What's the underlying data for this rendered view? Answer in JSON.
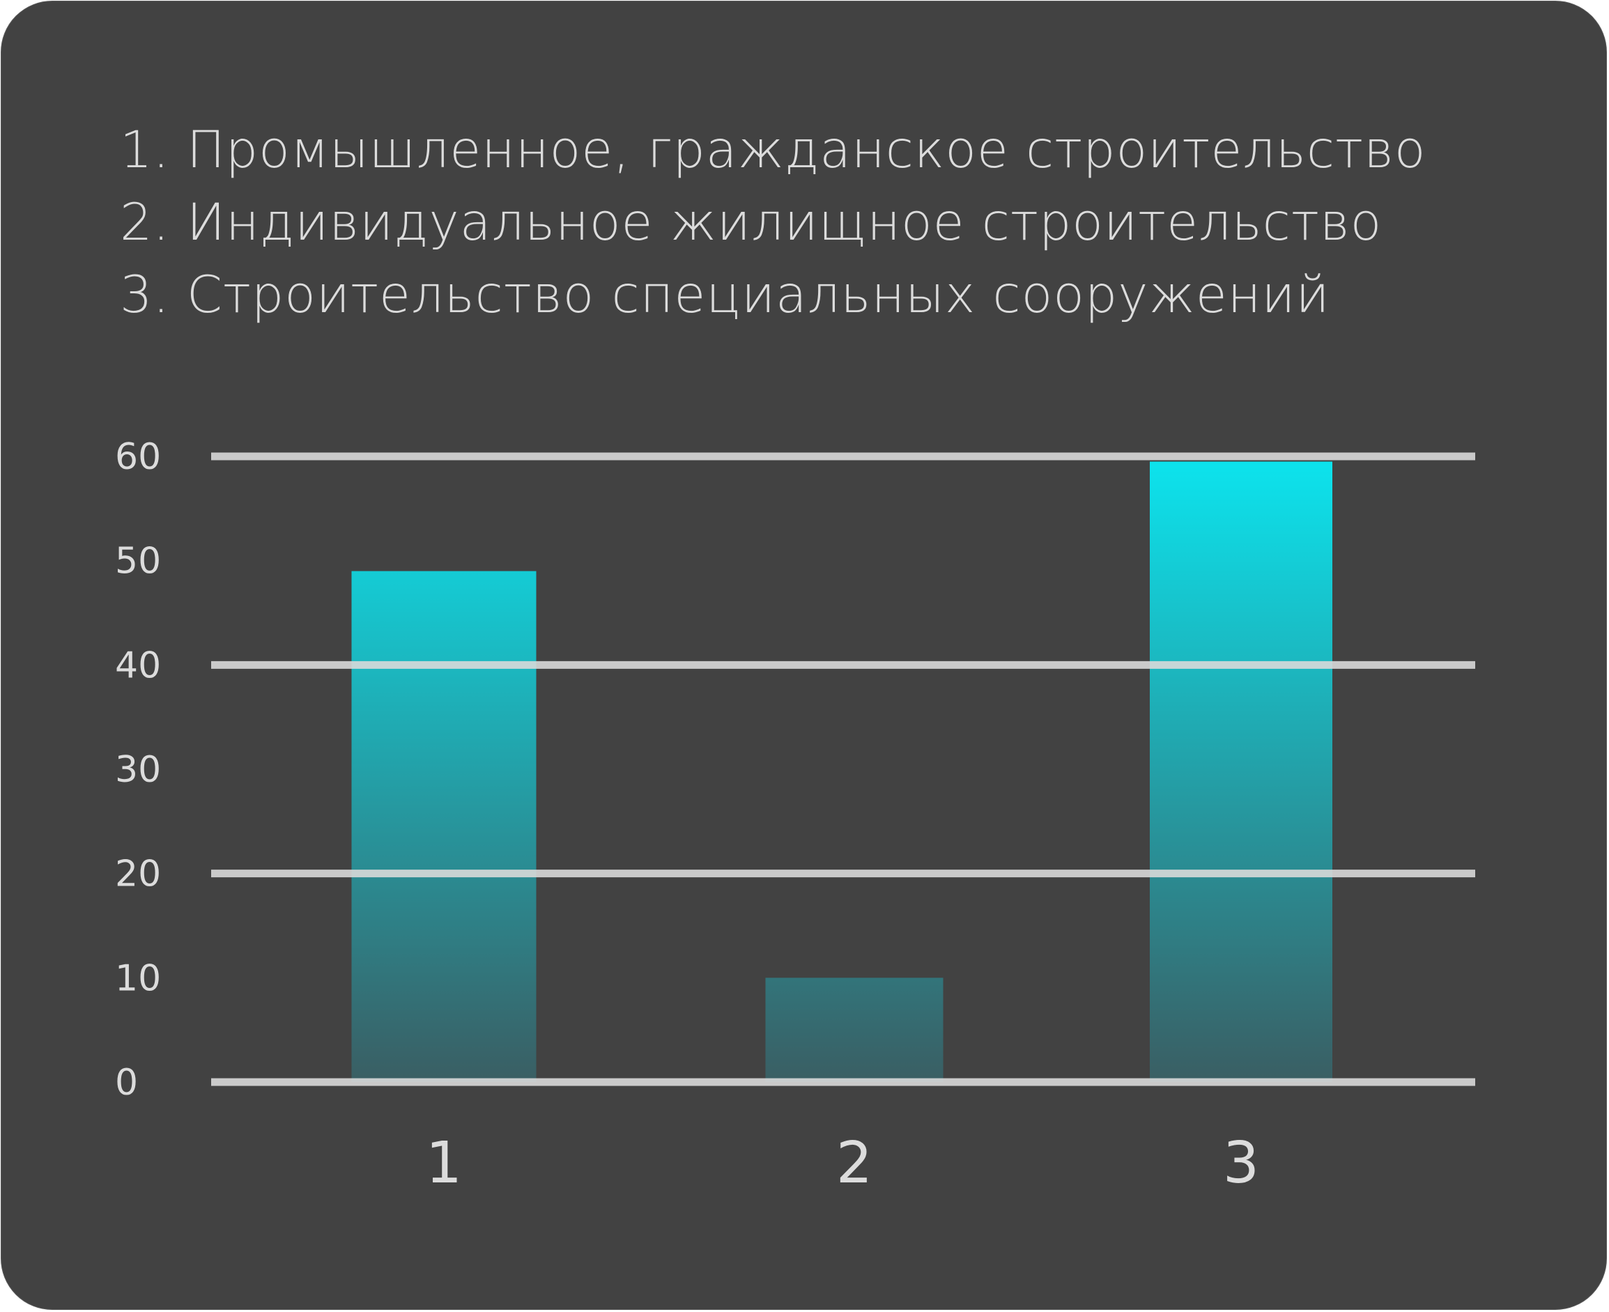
{
  "colors": {
    "background": "#424242",
    "grid": "#d9d9d9",
    "text": "#dcdcdc",
    "bar_top": "#0ce4ee",
    "bar_bottom": "#3a5e63"
  },
  "legend": [
    "1. Промышленное, гражданское строительство",
    "2. Индивидуальное жилищное строительство",
    "3. Строительство специальных сооружений"
  ],
  "chart_data": {
    "type": "bar",
    "categories": [
      "1",
      "2",
      "3"
    ],
    "values": [
      49,
      10,
      59.5
    ],
    "ylim": [
      0,
      60
    ],
    "yticks": [
      "0",
      "10",
      "20",
      "30",
      "40",
      "50",
      "60"
    ],
    "gridlines": [
      0,
      20,
      40,
      60
    ],
    "title": "",
    "xlabel": "",
    "ylabel": ""
  }
}
